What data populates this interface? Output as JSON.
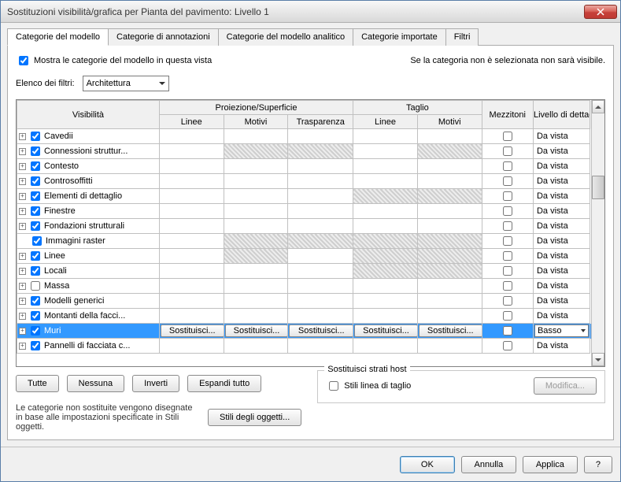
{
  "window": {
    "title": "Sostituzioni visibilità/grafica per Pianta del pavimento: Livello 1"
  },
  "tabs": [
    {
      "label": "Categorie del modello",
      "active": true
    },
    {
      "label": "Categorie di annotazioni",
      "active": false
    },
    {
      "label": "Categorie del modello analitico",
      "active": false
    },
    {
      "label": "Categorie importate",
      "active": false
    },
    {
      "label": "Filtri",
      "active": false
    }
  ],
  "showCategories": {
    "label": "Mostra le categorie del modello in questa vista",
    "checked": true
  },
  "notSelectedNote": "Se la categoria non è selezionata non sarà visibile.",
  "filterList": {
    "label": "Elenco dei filtri:",
    "value": "Architettura"
  },
  "columns": {
    "visibility": "Visibilità",
    "projection": "Proiezione/Superficie",
    "cut": "Taglio",
    "lines": "Linee",
    "patterns": "Motivi",
    "transparency": "Trasparenza",
    "halftone": "Mezzitoni",
    "detail": "Livello di dettaglio"
  },
  "overrideLabel": "Sostituisci...",
  "detailDefault": "Da vista",
  "detailSelected": "Basso",
  "rows": [
    {
      "name": "Cavedii",
      "checked": true,
      "exp": true,
      "hatched": [],
      "selected": false
    },
    {
      "name": "Connessioni struttur...",
      "checked": true,
      "exp": true,
      "hatched": [
        "pp",
        "ct",
        "cp"
      ],
      "selected": false
    },
    {
      "name": "Contesto",
      "checked": true,
      "exp": true,
      "hatched": [],
      "selected": false
    },
    {
      "name": "Controsoffitti",
      "checked": true,
      "exp": true,
      "hatched": [],
      "selected": false
    },
    {
      "name": "Elementi di dettaglio",
      "checked": true,
      "exp": true,
      "hatched": [
        "cl",
        "cp"
      ],
      "selected": false
    },
    {
      "name": "Finestre",
      "checked": true,
      "exp": true,
      "hatched": [],
      "selected": false
    },
    {
      "name": "Fondazioni strutturali",
      "checked": true,
      "exp": true,
      "hatched": [],
      "selected": false
    },
    {
      "name": "Immagini raster",
      "checked": true,
      "exp": false,
      "hatched": [
        "pp",
        "ct",
        "cl",
        "cp"
      ],
      "selected": false
    },
    {
      "name": "Linee",
      "checked": true,
      "exp": true,
      "hatched": [
        "pp",
        "cl",
        "cp"
      ],
      "selected": false
    },
    {
      "name": "Locali",
      "checked": true,
      "exp": true,
      "hatched": [
        "cl",
        "cp"
      ],
      "selected": false
    },
    {
      "name": "Massa",
      "checked": false,
      "exp": true,
      "hatched": [],
      "selected": false
    },
    {
      "name": "Modelli generici",
      "checked": true,
      "exp": true,
      "hatched": [],
      "selected": false
    },
    {
      "name": "Montanti della facci...",
      "checked": true,
      "exp": true,
      "hatched": [],
      "selected": false
    },
    {
      "name": "Muri",
      "checked": true,
      "exp": true,
      "hatched": [],
      "selected": true
    },
    {
      "name": "Pannelli di facciata c...",
      "checked": true,
      "exp": true,
      "hatched": [],
      "selected": false
    }
  ],
  "buttons": {
    "all": "Tutte",
    "none": "Nessuna",
    "invert": "Inverti",
    "expand": "Espandi tutto",
    "objStyles": "Stili degli oggetti...",
    "modify": "Modifica..."
  },
  "helpText": "Le categorie non sostituite vengono disegnate in base alle impostazioni specificate in Stili oggetti.",
  "hostLayers": {
    "legend": "Sostituisci strati host",
    "cutLineStyles": "Stili linea di taglio",
    "checked": false
  },
  "footer": {
    "ok": "OK",
    "cancel": "Annulla",
    "apply": "Applica",
    "help": "?"
  },
  "colWidths": {
    "vis": 166,
    "pl": 75,
    "pp": 75,
    "ct": 76,
    "cl": 75,
    "cp": 75,
    "half": 60,
    "detail": 66
  }
}
